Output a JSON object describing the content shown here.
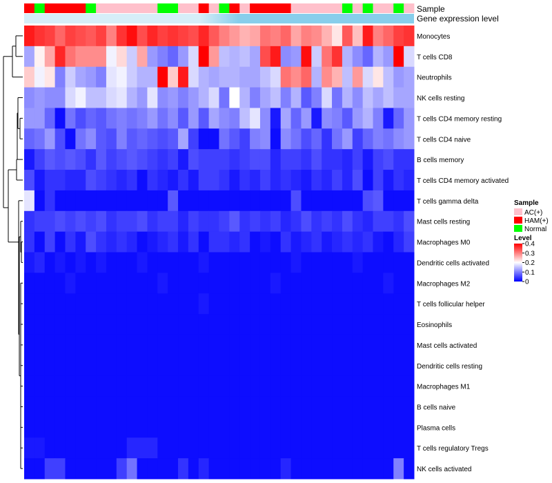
{
  "chart_data": {
    "type": "heatmap",
    "annotation_titles": {
      "sample": "Sample",
      "expression": "Gene expression level"
    },
    "rows": [
      "Monocytes",
      "T cells CD8",
      "Neutrophils",
      "NK cells resting",
      "T cells CD4 memory resting",
      "T cells CD4 naive",
      "B cells memory",
      "T cells CD4 memory activated",
      "T cells gamma delta",
      "Mast cells resting",
      "Macrophages M0",
      "Dendritic cells activated",
      "Macrophages M2",
      "T cells follicular helper",
      "Eosinophils",
      "Mast cells activated",
      "Dendritic cells resting",
      "Macrophages M1",
      "B cells naive",
      "Plasma cells",
      "T cells regulatory  Tregs",
      "NK cells activated"
    ],
    "sample_groups": [
      "HAM",
      "Normal",
      "HAM",
      "HAM",
      "HAM",
      "HAM",
      "Normal",
      "AC",
      "AC",
      "AC",
      "AC",
      "AC",
      "AC",
      "Normal",
      "Normal",
      "AC",
      "AC",
      "HAM",
      "AC",
      "Normal",
      "HAM",
      "AC",
      "HAM",
      "HAM",
      "HAM",
      "HAM",
      "AC",
      "AC",
      "AC",
      "AC",
      "AC",
      "Normal",
      "AC",
      "Normal",
      "AC",
      "AC",
      "Normal",
      "AC"
    ],
    "values": [
      [
        0.38,
        0.36,
        0.35,
        0.32,
        0.35,
        0.34,
        0.33,
        0.35,
        0.3,
        0.36,
        0.39,
        0.34,
        0.37,
        0.35,
        0.36,
        0.35,
        0.34,
        0.37,
        0.33,
        0.3,
        0.28,
        0.26,
        0.27,
        0.31,
        0.3,
        0.32,
        0.27,
        0.3,
        0.29,
        0.26,
        0.22,
        0.33,
        0.25,
        0.38,
        0.3,
        0.32,
        0.35,
        0.36
      ],
      [
        0.13,
        0.21,
        0.27,
        0.37,
        0.31,
        0.29,
        0.29,
        0.29,
        0.19,
        0.23,
        0.16,
        0.27,
        0.12,
        0.1,
        0.08,
        0.12,
        0.17,
        0.4,
        0.28,
        0.15,
        0.14,
        0.15,
        0.13,
        0.34,
        0.38,
        0.11,
        0.12,
        0.39,
        0.16,
        0.31,
        0.36,
        0.14,
        0.11,
        0.08,
        0.14,
        0.12,
        0.4,
        0.17
      ],
      [
        0.24,
        0.19,
        0.22,
        0.1,
        0.16,
        0.13,
        0.12,
        0.1,
        0.18,
        0.19,
        0.16,
        0.14,
        0.14,
        0.4,
        0.24,
        0.38,
        0.17,
        0.14,
        0.13,
        0.14,
        0.14,
        0.13,
        0.13,
        0.15,
        0.17,
        0.31,
        0.29,
        0.32,
        0.14,
        0.29,
        0.26,
        0.15,
        0.28,
        0.17,
        0.22,
        0.15,
        0.12,
        0.13
      ],
      [
        0.11,
        0.12,
        0.11,
        0.11,
        0.17,
        0.19,
        0.15,
        0.15,
        0.17,
        0.18,
        0.14,
        0.12,
        0.18,
        0.11,
        0.12,
        0.1,
        0.12,
        0.14,
        0.17,
        0.09,
        0.2,
        0.14,
        0.1,
        0.13,
        0.15,
        0.1,
        0.14,
        0.07,
        0.1,
        0.17,
        0.09,
        0.14,
        0.11,
        0.15,
        0.13,
        0.15,
        0.13,
        0.13
      ],
      [
        0.12,
        0.12,
        0.08,
        0.01,
        0.09,
        0.06,
        0.08,
        0.07,
        0.09,
        0.1,
        0.09,
        0.1,
        0.12,
        0.09,
        0.11,
        0.07,
        0.12,
        0.07,
        0.13,
        0.11,
        0.1,
        0.15,
        0.18,
        0.11,
        0.02,
        0.13,
        0.08,
        0.12,
        0.02,
        0.11,
        0.1,
        0.07,
        0.12,
        0.14,
        0.1,
        0.02,
        0.08,
        0.12
      ],
      [
        0.08,
        0.09,
        0.12,
        0.06,
        0.01,
        0.09,
        0.11,
        0.07,
        0.06,
        0.1,
        0.07,
        0.08,
        0.07,
        0.06,
        0.07,
        0.13,
        0.05,
        0.01,
        0.01,
        0.09,
        0.07,
        0.05,
        0.1,
        0.11,
        0.01,
        0.11,
        0.09,
        0.06,
        0.08,
        0.04,
        0.09,
        0.12,
        0.05,
        0.08,
        0.1,
        0.09,
        0.11,
        0.12
      ],
      [
        0.02,
        0.05,
        0.07,
        0.06,
        0.07,
        0.06,
        0.04,
        0.07,
        0.05,
        0.06,
        0.07,
        0.06,
        0.05,
        0.04,
        0.05,
        0.02,
        0.06,
        0.05,
        0.05,
        0.05,
        0.04,
        0.05,
        0.06,
        0.06,
        0.03,
        0.05,
        0.05,
        0.04,
        0.06,
        0.04,
        0.04,
        0.03,
        0.05,
        0.02,
        0.05,
        0.06,
        0.04,
        0.04
      ],
      [
        0.06,
        0.02,
        0.04,
        0.04,
        0.03,
        0.03,
        0.06,
        0.05,
        0.04,
        0.03,
        0.04,
        0.01,
        0.04,
        0.03,
        0.02,
        0.04,
        0.02,
        0.05,
        0.05,
        0.04,
        0.02,
        0.04,
        0.03,
        0.05,
        0.03,
        0.04,
        0.03,
        0.02,
        0.04,
        0.03,
        0.05,
        0.03,
        0.06,
        0.01,
        0.05,
        0.02,
        0.04,
        0.03
      ],
      [
        0.18,
        0.01,
        0.04,
        0.01,
        0.01,
        0.01,
        0.01,
        0.01,
        0.01,
        0.01,
        0.01,
        0.01,
        0.01,
        0.01,
        0.07,
        0.01,
        0.01,
        0.01,
        0.01,
        0.01,
        0.01,
        0.01,
        0.01,
        0.01,
        0.01,
        0.01,
        0.06,
        0.01,
        0.01,
        0.01,
        0.01,
        0.01,
        0.01,
        0.06,
        0.07,
        0.01,
        0.01,
        0.01
      ],
      [
        0.04,
        0.05,
        0.05,
        0.06,
        0.05,
        0.06,
        0.05,
        0.06,
        0.04,
        0.05,
        0.05,
        0.06,
        0.04,
        0.05,
        0.05,
        0.03,
        0.05,
        0.04,
        0.04,
        0.05,
        0.07,
        0.04,
        0.05,
        0.04,
        0.05,
        0.03,
        0.04,
        0.06,
        0.04,
        0.05,
        0.04,
        0.06,
        0.04,
        0.03,
        0.05,
        0.05,
        0.04,
        0.06
      ],
      [
        0.04,
        0.01,
        0.05,
        0.01,
        0.04,
        0.02,
        0.06,
        0.04,
        0.03,
        0.04,
        0.03,
        0.01,
        0.02,
        0.03,
        0.04,
        0.02,
        0.04,
        0.01,
        0.04,
        0.04,
        0.03,
        0.04,
        0.01,
        0.02,
        0.01,
        0.04,
        0.02,
        0.03,
        0.04,
        0.02,
        0.03,
        0.04,
        0.03,
        0.04,
        0.02,
        0.01,
        0.03,
        0.05
      ],
      [
        0.02,
        0.03,
        0.01,
        0.02,
        0.01,
        0.02,
        0.01,
        0.02,
        0.01,
        0.01,
        0.01,
        0.02,
        0.01,
        0.01,
        0.01,
        0.01,
        0.01,
        0.02,
        0.01,
        0.01,
        0.01,
        0.01,
        0.01,
        0.01,
        0.01,
        0.01,
        0.02,
        0.01,
        0.01,
        0.01,
        0.01,
        0.01,
        0.02,
        0.01,
        0.01,
        0.01,
        0.01,
        0.01
      ],
      [
        0.01,
        0.01,
        0.01,
        0.01,
        0.02,
        0.01,
        0.01,
        0.01,
        0.01,
        0.01,
        0.01,
        0.01,
        0.01,
        0.02,
        0.01,
        0.01,
        0.01,
        0.01,
        0.01,
        0.01,
        0.01,
        0.01,
        0.01,
        0.01,
        0.02,
        0.01,
        0.01,
        0.01,
        0.01,
        0.01,
        0.01,
        0.01,
        0.01,
        0.01,
        0.01,
        0.02,
        0.01,
        0.01
      ],
      [
        0.01,
        0.01,
        0.01,
        0.01,
        0.01,
        0.01,
        0.01,
        0.01,
        0.01,
        0.01,
        0.01,
        0.01,
        0.01,
        0.01,
        0.01,
        0.01,
        0.01,
        0.02,
        0.01,
        0.01,
        0.01,
        0.01,
        0.01,
        0.01,
        0.01,
        0.01,
        0.01,
        0.01,
        0.01,
        0.01,
        0.01,
        0.01,
        0.01,
        0.01,
        0.01,
        0.01,
        0.01,
        0.01
      ],
      [
        0.01,
        0.01,
        0.01,
        0.01,
        0.01,
        0.01,
        0.01,
        0.01,
        0.01,
        0.01,
        0.01,
        0.01,
        0.01,
        0.01,
        0.01,
        0.01,
        0.01,
        0.01,
        0.01,
        0.01,
        0.01,
        0.01,
        0.01,
        0.01,
        0.01,
        0.01,
        0.01,
        0.01,
        0.01,
        0.01,
        0.01,
        0.01,
        0.01,
        0.01,
        0.01,
        0.01,
        0.01,
        0.01
      ],
      [
        0.01,
        0.01,
        0.01,
        0.01,
        0.01,
        0.01,
        0.01,
        0.01,
        0.01,
        0.01,
        0.01,
        0.01,
        0.01,
        0.01,
        0.01,
        0.01,
        0.01,
        0.01,
        0.01,
        0.01,
        0.01,
        0.01,
        0.01,
        0.01,
        0.01,
        0.01,
        0.01,
        0.01,
        0.01,
        0.01,
        0.01,
        0.01,
        0.01,
        0.01,
        0.01,
        0.01,
        0.01,
        0.01
      ],
      [
        0.01,
        0.01,
        0.01,
        0.01,
        0.01,
        0.01,
        0.01,
        0.01,
        0.01,
        0.01,
        0.01,
        0.01,
        0.01,
        0.01,
        0.01,
        0.01,
        0.01,
        0.01,
        0.01,
        0.01,
        0.01,
        0.01,
        0.01,
        0.01,
        0.01,
        0.01,
        0.01,
        0.01,
        0.01,
        0.01,
        0.01,
        0.01,
        0.01,
        0.01,
        0.01,
        0.01,
        0.01,
        0.01
      ],
      [
        0.01,
        0.01,
        0.01,
        0.01,
        0.01,
        0.01,
        0.01,
        0.01,
        0.01,
        0.01,
        0.01,
        0.01,
        0.01,
        0.01,
        0.01,
        0.01,
        0.01,
        0.01,
        0.01,
        0.01,
        0.01,
        0.01,
        0.01,
        0.01,
        0.01,
        0.01,
        0.01,
        0.01,
        0.01,
        0.01,
        0.01,
        0.01,
        0.01,
        0.01,
        0.01,
        0.01,
        0.01,
        0.01
      ],
      [
        0.01,
        0.01,
        0.01,
        0.01,
        0.01,
        0.01,
        0.01,
        0.01,
        0.01,
        0.01,
        0.01,
        0.01,
        0.01,
        0.01,
        0.01,
        0.01,
        0.01,
        0.01,
        0.01,
        0.01,
        0.01,
        0.01,
        0.01,
        0.01,
        0.01,
        0.01,
        0.01,
        0.01,
        0.01,
        0.01,
        0.01,
        0.01,
        0.01,
        0.01,
        0.01,
        0.01,
        0.01,
        0.01
      ],
      [
        0.01,
        0.01,
        0.01,
        0.01,
        0.01,
        0.01,
        0.01,
        0.01,
        0.01,
        0.01,
        0.01,
        0.01,
        0.01,
        0.01,
        0.01,
        0.01,
        0.01,
        0.01,
        0.01,
        0.01,
        0.01,
        0.01,
        0.01,
        0.01,
        0.01,
        0.01,
        0.01,
        0.01,
        0.01,
        0.01,
        0.01,
        0.01,
        0.01,
        0.01,
        0.01,
        0.01,
        0.01,
        0.01
      ],
      [
        0.02,
        0.02,
        0.01,
        0.01,
        0.01,
        0.01,
        0.01,
        0.01,
        0.01,
        0.01,
        0.03,
        0.03,
        0.03,
        0.01,
        0.01,
        0.01,
        0.01,
        0.01,
        0.01,
        0.01,
        0.01,
        0.01,
        0.01,
        0.01,
        0.01,
        0.01,
        0.01,
        0.01,
        0.01,
        0.01,
        0.01,
        0.01,
        0.01,
        0.01,
        0.01,
        0.01,
        0.01,
        0.01
      ],
      [
        0.01,
        0.01,
        0.05,
        0.05,
        0.01,
        0.01,
        0.01,
        0.01,
        0.01,
        0.05,
        0.09,
        0.01,
        0.01,
        0.01,
        0.01,
        0.04,
        0.01,
        0.03,
        0.01,
        0.01,
        0.01,
        0.01,
        0.01,
        0.01,
        0.01,
        0.03,
        0.01,
        0.01,
        0.01,
        0.01,
        0.01,
        0.01,
        0.01,
        0.01,
        0.01,
        0.01,
        0.1,
        0.01
      ]
    ],
    "legend": {
      "sample_title": "Sample",
      "sample_entries": [
        {
          "key": "AC",
          "label": "AC(+)",
          "color": "#FFC0CB"
        },
        {
          "key": "HAM",
          "label": "HAM(+)",
          "color": "#FF0000"
        },
        {
          "key": "Normal",
          "label": "Normal",
          "color": "#00FF00"
        }
      ],
      "level_title": "Level",
      "level_ticks": [
        "0.4",
        "0.3",
        "0.2",
        "0.1",
        "0"
      ],
      "level_tick_values": [
        0.4,
        0.3,
        0.2,
        0.1,
        0
      ],
      "range": [
        0,
        0.4
      ]
    },
    "colors": {
      "low": "#0000FF",
      "mid": "#FFFFFF",
      "high": "#FF0000",
      "expression_bar": "#87CEEB",
      "expression_bar_light": "#D6EEF8"
    }
  }
}
